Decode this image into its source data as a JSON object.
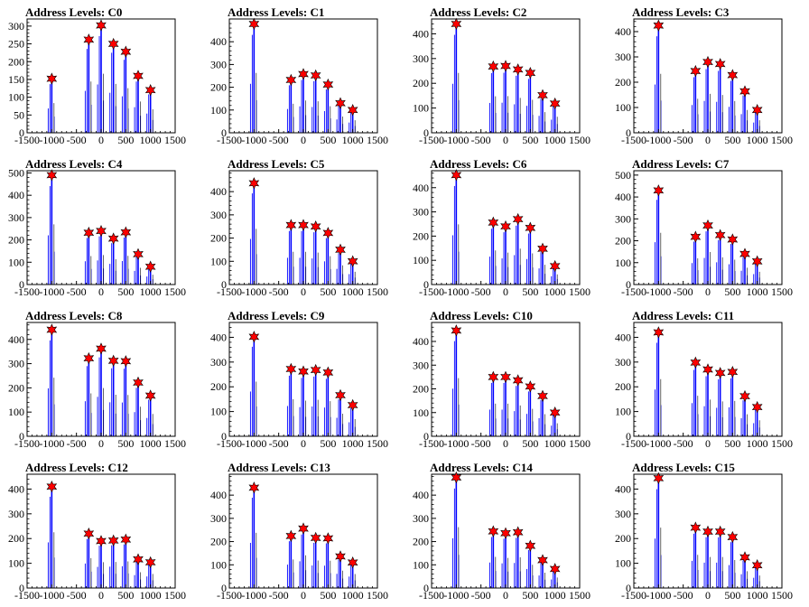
{
  "chart_data": [
    {
      "type": "bar",
      "title": "Address Levels: C0",
      "xlim": [
        -1500,
        1500
      ],
      "ylim": [
        0,
        320
      ],
      "x_ticks": [
        -1500,
        -1000,
        -500,
        0,
        500,
        1000,
        1500
      ],
      "y_ticks": [
        0,
        50,
        100,
        150,
        200,
        250,
        300
      ],
      "peaks": {
        "x": [
          -1000,
          -250,
          0,
          250,
          500,
          750,
          1000
        ],
        "y": [
          152,
          262,
          302,
          250,
          228,
          160,
          120
        ]
      }
    },
    {
      "type": "bar",
      "title": "Address Levels: C1",
      "xlim": [
        -1500,
        1500
      ],
      "ylim": [
        0,
        500
      ],
      "x_ticks": [
        -1500,
        -1000,
        -500,
        0,
        500,
        1000,
        1500
      ],
      "y_ticks": [
        0,
        100,
        200,
        300,
        400
      ],
      "peaks": {
        "x": [
          -1000,
          -250,
          0,
          250,
          500,
          750,
          1000
        ],
        "y": [
          478,
          232,
          258,
          252,
          212,
          130,
          100
        ]
      }
    },
    {
      "type": "bar",
      "title": "Address Levels: C2",
      "xlim": [
        -1500,
        1500
      ],
      "ylim": [
        0,
        460
      ],
      "x_ticks": [
        -1500,
        -1000,
        -500,
        0,
        500,
        1000,
        1500
      ],
      "y_ticks": [
        0,
        100,
        200,
        300,
        400
      ],
      "peaks": {
        "x": [
          -1000,
          -250,
          0,
          250,
          500,
          750,
          1000
        ],
        "y": [
          440,
          268,
          270,
          256,
          242,
          152,
          118
        ]
      }
    },
    {
      "type": "bar",
      "title": "Address Levels: C3",
      "xlim": [
        -1500,
        1500
      ],
      "ylim": [
        0,
        450
      ],
      "x_ticks": [
        -1500,
        -1000,
        -500,
        0,
        500,
        1000,
        1500
      ],
      "y_ticks": [
        0,
        100,
        200,
        300,
        400
      ],
      "peaks": {
        "x": [
          -1000,
          -250,
          0,
          250,
          500,
          750,
          1000
        ],
        "y": [
          424,
          244,
          280,
          272,
          228,
          164,
          90
        ]
      }
    },
    {
      "type": "bar",
      "title": "Address Levels: C4",
      "xlim": [
        -1500,
        1500
      ],
      "ylim": [
        0,
        510
      ],
      "x_ticks": [
        -1500,
        -1000,
        -500,
        0,
        500,
        1000,
        1500
      ],
      "y_ticks": [
        0,
        100,
        200,
        300,
        400,
        500
      ],
      "peaks": {
        "x": [
          -1000,
          -250,
          0,
          250,
          500,
          750,
          1000
        ],
        "y": [
          490,
          232,
          240,
          206,
          234,
          136,
          80
        ]
      }
    },
    {
      "type": "bar",
      "title": "Address Levels: C5",
      "xlim": [
        -1500,
        1500
      ],
      "ylim": [
        0,
        490
      ],
      "x_ticks": [
        -1500,
        -1000,
        -500,
        0,
        500,
        1000,
        1500
      ],
      "y_ticks": [
        0,
        100,
        200,
        300,
        400
      ],
      "peaks": {
        "x": [
          -1000,
          -250,
          0,
          250,
          500,
          750,
          1000
        ],
        "y": [
          436,
          256,
          256,
          250,
          222,
          150,
          100
        ]
      }
    },
    {
      "type": "bar",
      "title": "Address Levels: C6",
      "xlim": [
        -1500,
        1500
      ],
      "ylim": [
        0,
        470
      ],
      "x_ticks": [
        -1500,
        -1000,
        -500,
        0,
        500,
        1000,
        1500
      ],
      "y_ticks": [
        0,
        100,
        200,
        300,
        400
      ],
      "peaks": {
        "x": [
          -1000,
          -250,
          0,
          250,
          500,
          750,
          1000
        ],
        "y": [
          452,
          256,
          240,
          270,
          234,
          148,
          76
        ]
      }
    },
    {
      "type": "bar",
      "title": "Address Levels: C7",
      "xlim": [
        -1500,
        1500
      ],
      "ylim": [
        0,
        520
      ],
      "x_ticks": [
        -1500,
        -1000,
        -500,
        0,
        500,
        1000,
        1500
      ],
      "y_ticks": [
        0,
        100,
        200,
        300,
        400,
        500
      ],
      "peaks": {
        "x": [
          -1000,
          -250,
          0,
          250,
          500,
          750,
          1000
        ],
        "y": [
          430,
          218,
          270,
          226,
          206,
          140,
          106
        ]
      }
    },
    {
      "type": "bar",
      "title": "Address Levels: C8",
      "xlim": [
        -1500,
        1500
      ],
      "ylim": [
        0,
        470
      ],
      "x_ticks": [
        -1500,
        -1000,
        -500,
        0,
        500,
        1000,
        1500
      ],
      "y_ticks": [
        0,
        100,
        200,
        300,
        400
      ],
      "peaks": {
        "x": [
          -1000,
          -250,
          0,
          250,
          500,
          750,
          1000
        ],
        "y": [
          440,
          322,
          362,
          312,
          310,
          222,
          168
        ]
      }
    },
    {
      "type": "bar",
      "title": "Address Levels: C9",
      "xlim": [
        -1500,
        1500
      ],
      "ylim": [
        0,
        460
      ],
      "x_ticks": [
        -1500,
        -1000,
        -500,
        0,
        500,
        1000,
        1500
      ],
      "y_ticks": [
        0,
        100,
        200,
        300,
        400
      ],
      "peaks": {
        "x": [
          -1000,
          -250,
          0,
          250,
          500,
          750,
          1000
        ],
        "y": [
          402,
          272,
          262,
          268,
          258,
          166,
          126
        ]
      }
    },
    {
      "type": "bar",
      "title": "Address Levels: C10",
      "xlim": [
        -1500,
        1500
      ],
      "ylim": [
        0,
        480
      ],
      "x_ticks": [
        -1500,
        -1000,
        -500,
        0,
        500,
        1000,
        1500
      ],
      "y_ticks": [
        0,
        100,
        200,
        300,
        400
      ],
      "peaks": {
        "x": [
          -1000,
          -250,
          0,
          250,
          500,
          750,
          1000
        ],
        "y": [
          446,
          250,
          250,
          236,
          210,
          170,
          100
        ]
      }
    },
    {
      "type": "bar",
      "title": "Address Levels: C11",
      "xlim": [
        -1500,
        1500
      ],
      "ylim": [
        0,
        460
      ],
      "x_ticks": [
        -1500,
        -1000,
        -500,
        0,
        500,
        1000,
        1500
      ],
      "y_ticks": [
        0,
        100,
        200,
        300,
        400
      ],
      "peaks": {
        "x": [
          -1000,
          -250,
          0,
          250,
          500,
          750,
          1000
        ],
        "y": [
          420,
          298,
          270,
          256,
          260,
          162,
          118
        ]
      }
    },
    {
      "type": "bar",
      "title": "Address Levels: C12",
      "xlim": [
        -1500,
        1500
      ],
      "ylim": [
        0,
        460
      ],
      "x_ticks": [
        -1500,
        -1000,
        -500,
        0,
        500,
        1000,
        1500
      ],
      "y_ticks": [
        0,
        100,
        200,
        300,
        400
      ],
      "peaks": {
        "x": [
          -1000,
          -250,
          0,
          250,
          500,
          750,
          1000
        ],
        "y": [
          410,
          220,
          190,
          192,
          196,
          116,
          104
        ]
      }
    },
    {
      "type": "bar",
      "title": "Address Levels: C13",
      "xlim": [
        -1500,
        1500
      ],
      "ylim": [
        0,
        490
      ],
      "x_ticks": [
        -1500,
        -1000,
        -500,
        0,
        500,
        1000,
        1500
      ],
      "y_ticks": [
        0,
        100,
        200,
        300,
        400
      ],
      "peaks": {
        "x": [
          -1000,
          -250,
          0,
          250,
          500,
          750,
          1000
        ],
        "y": [
          432,
          224,
          256,
          216,
          214,
          136,
          110
        ]
      }
    },
    {
      "type": "bar",
      "title": "Address Levels: C14",
      "xlim": [
        -1500,
        1500
      ],
      "ylim": [
        0,
        490
      ],
      "x_ticks": [
        -1500,
        -1000,
        -500,
        0,
        500,
        1000,
        1500
      ],
      "y_ticks": [
        0,
        100,
        200,
        300,
        400
      ],
      "peaks": {
        "x": [
          -1000,
          -250,
          0,
          250,
          500,
          750,
          1000
        ],
        "y": [
          476,
          244,
          236,
          240,
          182,
          120,
          82
        ]
      }
    },
    {
      "type": "bar",
      "title": "Address Levels: C15",
      "xlim": [
        -1500,
        1500
      ],
      "ylim": [
        0,
        460
      ],
      "x_ticks": [
        -1500,
        -1000,
        -500,
        0,
        500,
        1000,
        1500
      ],
      "y_ticks": [
        0,
        100,
        200,
        300,
        400
      ],
      "peaks": {
        "x": [
          -1000,
          -250,
          0,
          250,
          500,
          750,
          1000
        ],
        "y": [
          444,
          244,
          228,
          228,
          206,
          124,
          92
        ]
      }
    }
  ],
  "colors": {
    "bars": "#0000ff",
    "markers": "#ff0000",
    "axes": "#000000"
  },
  "layout": {
    "rows": 4,
    "cols": 4,
    "grid": false
  }
}
